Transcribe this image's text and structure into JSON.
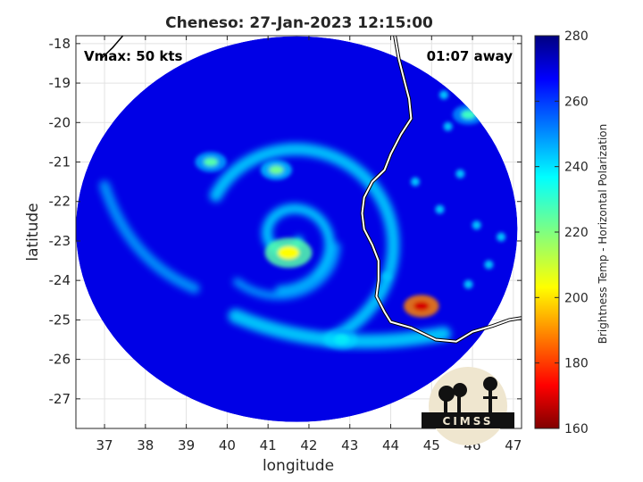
{
  "chart_data": {
    "type": "heatmap",
    "title": "Cheneso: 27-Jan-2023 12:15:00",
    "xlabel": "longitude",
    "ylabel": "latitude",
    "xlim": [
      36.3,
      47.2
    ],
    "ylim": [
      -27.75,
      -17.8
    ],
    "xticks": [
      37,
      38,
      39,
      40,
      41,
      42,
      43,
      44,
      45,
      46,
      47
    ],
    "yticks": [
      -18,
      -19,
      -20,
      -21,
      -22,
      -23,
      -24,
      -25,
      -26,
      -27
    ],
    "grid": true,
    "colorbar": {
      "label": "Brightness Temp - Horizontal Polarization",
      "min": 160,
      "max": 280,
      "ticks": [
        280,
        260,
        240,
        220,
        200,
        180,
        160
      ],
      "colormap": "jet"
    },
    "swath": {
      "center_lon": 41.7,
      "center_lat": -22.7,
      "radius_deg": 5.4
    },
    "storm_center": {
      "lon": 41.5,
      "lat": -22.9
    },
    "warm_background_value": 268,
    "features": [
      {
        "name": "inner core",
        "lon": 41.5,
        "lat": -23.3,
        "value": 205
      },
      {
        "name": "convective cell",
        "lon": 44.75,
        "lat": -24.65,
        "value": 170
      },
      {
        "name": "outer band north",
        "lon": 39.6,
        "lat": -21.0,
        "value": 225
      },
      {
        "name": "band segment",
        "lon": 41.2,
        "lat": -21.2,
        "value": 222
      },
      {
        "name": "southern band",
        "lon": 42.8,
        "lat": -25.5,
        "value": 232
      },
      {
        "name": "cell east",
        "lon": 45.9,
        "lat": -19.8,
        "value": 228
      }
    ],
    "annotations": {
      "vmax": "Vmax: 50 kts",
      "time_away": "01:07 away"
    },
    "logo_text": "CIMSS"
  }
}
